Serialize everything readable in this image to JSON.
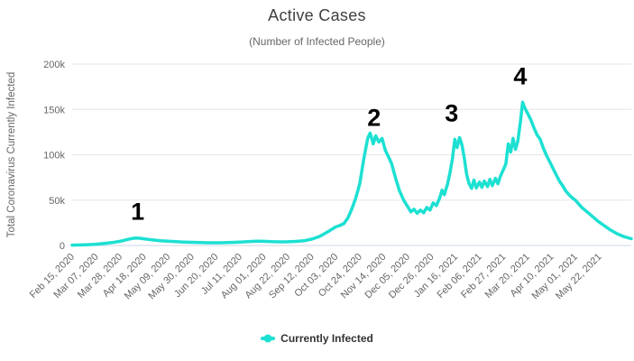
{
  "colors": {
    "series": "#1ce0d2",
    "grid": "#e6e6e6",
    "axis_line": "#ccd6eb",
    "tick_text": "#666666",
    "title_text": "#3f3f3f",
    "annotation": "#000000"
  },
  "legend": {
    "label": "Currently Infected"
  },
  "chart_data": {
    "type": "line",
    "title": "Active Cases",
    "subtitle": "(Number of Infected People)",
    "ylabel": "Total Coronavirus Currently Infected",
    "xlabel": "",
    "ylim": [
      0,
      200000
    ],
    "x_range_weeks": [
      0,
      70
    ],
    "grid": true,
    "legend_position": "bottom",
    "y_ticks": [
      {
        "value": 0,
        "label": "0"
      },
      {
        "value": 50000,
        "label": "50k"
      },
      {
        "value": 100000,
        "label": "100k"
      },
      {
        "value": 150000,
        "label": "150k"
      },
      {
        "value": 200000,
        "label": "200k"
      }
    ],
    "x_ticks": [
      {
        "week": 0,
        "label": "Feb 15, 2020"
      },
      {
        "week": 3,
        "label": "Mar 07, 2020"
      },
      {
        "week": 6,
        "label": "Mar 28, 2020"
      },
      {
        "week": 9,
        "label": "Apr 18, 2020"
      },
      {
        "week": 12,
        "label": "May 09, 2020"
      },
      {
        "week": 15,
        "label": "May 30, 2020"
      },
      {
        "week": 18,
        "label": "Jun 20, 2020"
      },
      {
        "week": 21,
        "label": "Jul 11, 2020"
      },
      {
        "week": 24,
        "label": "Aug 01, 2020"
      },
      {
        "week": 27,
        "label": "Aug 22, 2020"
      },
      {
        "week": 30,
        "label": "Sep 12, 2020"
      },
      {
        "week": 33,
        "label": "Oct 03, 2020"
      },
      {
        "week": 36,
        "label": "Oct 24, 2020"
      },
      {
        "week": 39,
        "label": "Nov 14, 2020"
      },
      {
        "week": 42,
        "label": "Dec 05, 2020"
      },
      {
        "week": 45,
        "label": "Dec 26, 2020"
      },
      {
        "week": 48,
        "label": "Jan 16, 2021"
      },
      {
        "week": 51,
        "label": "Feb 06, 2021"
      },
      {
        "week": 54,
        "label": "Feb 27, 2021"
      },
      {
        "week": 57,
        "label": "Mar 20, 2021"
      },
      {
        "week": 60,
        "label": "Apr 10, 2021"
      },
      {
        "week": 63,
        "label": "May 01, 2021"
      },
      {
        "week": 66,
        "label": "May 22, 2021"
      }
    ],
    "annotations": [
      {
        "label": "1",
        "week": 8.2,
        "value": 37000
      },
      {
        "label": "2",
        "week": 37.8,
        "value": 140000
      },
      {
        "label": "3",
        "week": 47.5,
        "value": 145000
      },
      {
        "label": "4",
        "week": 56.1,
        "value": 186000
      }
    ],
    "series": [
      {
        "name": "Currently Infected",
        "color": "#1ce0d2",
        "points": [
          [
            0,
            400
          ],
          [
            1,
            600
          ],
          [
            2,
            900
          ],
          [
            3,
            1400
          ],
          [
            4,
            2200
          ],
          [
            5,
            3200
          ],
          [
            6,
            4600
          ],
          [
            7,
            6800
          ],
          [
            7.5,
            7700
          ],
          [
            8,
            8200
          ],
          [
            8.5,
            8000
          ],
          [
            9,
            7400
          ],
          [
            10,
            6200
          ],
          [
            11,
            5300
          ],
          [
            12,
            4700
          ],
          [
            13,
            4200
          ],
          [
            14,
            3800
          ],
          [
            15,
            3500
          ],
          [
            16,
            3200
          ],
          [
            17,
            3000
          ],
          [
            18,
            3000
          ],
          [
            19,
            3100
          ],
          [
            20,
            3400
          ],
          [
            21,
            3800
          ],
          [
            22,
            4300
          ],
          [
            23,
            4800
          ],
          [
            24,
            4600
          ],
          [
            25,
            4200
          ],
          [
            26,
            4000
          ],
          [
            27,
            4100
          ],
          [
            28,
            4500
          ],
          [
            29,
            5200
          ],
          [
            30,
            7000
          ],
          [
            31,
            10000
          ],
          [
            32,
            15000
          ],
          [
            33,
            20500
          ],
          [
            33.5,
            22000
          ],
          [
            34,
            24000
          ],
          [
            34.5,
            30000
          ],
          [
            35,
            40000
          ],
          [
            35.5,
            52000
          ],
          [
            36,
            68000
          ],
          [
            36.5,
            95000
          ],
          [
            37,
            118000
          ],
          [
            37.3,
            124000
          ],
          [
            37.7,
            112000
          ],
          [
            38,
            121000
          ],
          [
            38.4,
            114000
          ],
          [
            38.8,
            118000
          ],
          [
            39.2,
            105000
          ],
          [
            39.6,
            98000
          ],
          [
            40,
            90000
          ],
          [
            40.5,
            74000
          ],
          [
            41,
            60000
          ],
          [
            41.5,
            50000
          ],
          [
            42,
            43000
          ],
          [
            42.4,
            37000
          ],
          [
            42.8,
            40000
          ],
          [
            43.2,
            35500
          ],
          [
            43.6,
            39000
          ],
          [
            44,
            36000
          ],
          [
            44.4,
            42000
          ],
          [
            44.8,
            39000
          ],
          [
            45.2,
            47000
          ],
          [
            45.6,
            44000
          ],
          [
            46,
            52000
          ],
          [
            46.3,
            61000
          ],
          [
            46.6,
            56000
          ],
          [
            47,
            68000
          ],
          [
            47.3,
            80000
          ],
          [
            47.6,
            95000
          ],
          [
            47.9,
            117000
          ],
          [
            48.2,
            108000
          ],
          [
            48.5,
            119000
          ],
          [
            48.8,
            111000
          ],
          [
            49.1,
            96000
          ],
          [
            49.4,
            78000
          ],
          [
            49.7,
            68000
          ],
          [
            50,
            63000
          ],
          [
            50.3,
            72000
          ],
          [
            50.6,
            63500
          ],
          [
            51,
            70000
          ],
          [
            51.3,
            64000
          ],
          [
            51.6,
            71000
          ],
          [
            52,
            65000
          ],
          [
            52.3,
            73000
          ],
          [
            52.6,
            66000
          ],
          [
            53,
            74000
          ],
          [
            53.3,
            68000
          ],
          [
            53.6,
            76000
          ],
          [
            54,
            84000
          ],
          [
            54.3,
            90000
          ],
          [
            54.6,
            112000
          ],
          [
            54.9,
            103000
          ],
          [
            55.2,
            118000
          ],
          [
            55.5,
            106000
          ],
          [
            55.8,
            115000
          ],
          [
            56.1,
            135000
          ],
          [
            56.4,
            158000
          ],
          [
            56.7,
            151000
          ],
          [
            57,
            146000
          ],
          [
            57.4,
            139000
          ],
          [
            57.8,
            130000
          ],
          [
            58.2,
            122000
          ],
          [
            58.6,
            117000
          ],
          [
            59,
            107000
          ],
          [
            59.4,
            99000
          ],
          [
            59.8,
            92000
          ],
          [
            60.2,
            85000
          ],
          [
            60.6,
            78000
          ],
          [
            61,
            71000
          ],
          [
            61.4,
            66000
          ],
          [
            61.8,
            60000
          ],
          [
            62.2,
            56000
          ],
          [
            62.6,
            52500
          ],
          [
            63,
            50000
          ],
          [
            63.4,
            46000
          ],
          [
            63.8,
            42000
          ],
          [
            64.2,
            39000
          ],
          [
            64.6,
            36000
          ],
          [
            65,
            33000
          ],
          [
            65.4,
            30000
          ],
          [
            65.8,
            27000
          ],
          [
            66.2,
            24500
          ],
          [
            66.6,
            22000
          ],
          [
            67,
            19500
          ],
          [
            67.4,
            17000
          ],
          [
            67.8,
            15000
          ],
          [
            68.2,
            13000
          ],
          [
            68.6,
            11500
          ],
          [
            69,
            10000
          ],
          [
            69.4,
            9000
          ],
          [
            69.8,
            8000
          ],
          [
            70,
            7500
          ]
        ]
      }
    ]
  }
}
